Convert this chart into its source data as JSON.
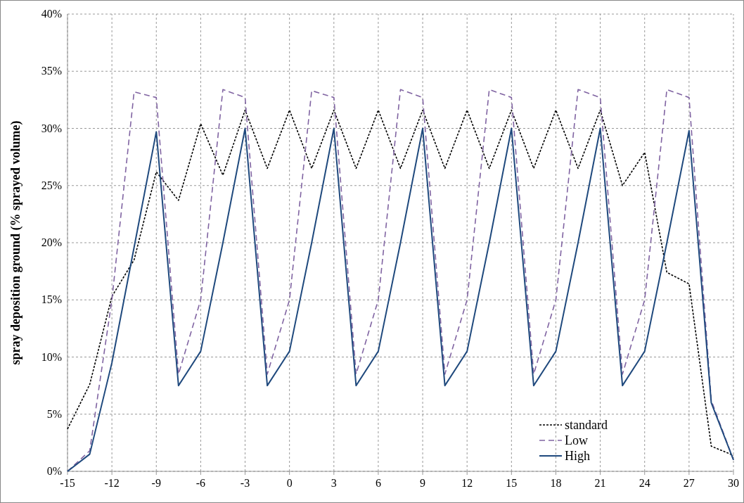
{
  "chart_data": {
    "type": "line",
    "ylabel": "spray deposition ground (% sprayed volume)",
    "x": [
      -15,
      -13.5,
      -12,
      -10.5,
      -9,
      -7.5,
      -6,
      -4.5,
      -3,
      -1.5,
      0,
      1.5,
      3,
      4.5,
      6,
      7.5,
      9,
      10.5,
      12,
      13.5,
      15,
      16.5,
      18,
      19.5,
      21,
      22.5,
      24,
      25.5,
      27,
      28.5,
      30
    ],
    "series": [
      {
        "name": "standard",
        "color": "#000000",
        "line_style": "dotted",
        "values": [
          3.7,
          7.6,
          15.3,
          18.5,
          26.2,
          23.7,
          30.4,
          25.9,
          31.6,
          26.5,
          31.6,
          26.5,
          31.6,
          26.5,
          31.6,
          26.5,
          31.6,
          26.5,
          31.6,
          26.5,
          31.6,
          26.5,
          31.6,
          26.5,
          31.6,
          25.0,
          27.9,
          17.4,
          16.4,
          2.2,
          1.4
        ]
      },
      {
        "name": "Low",
        "color": "#8064a2",
        "line_style": "dashed",
        "values": [
          0,
          1.8,
          15.0,
          33.2,
          32.7,
          8.5,
          15.0,
          33.4,
          32.7,
          8.5,
          15.0,
          33.3,
          32.7,
          8.5,
          15.0,
          33.4,
          32.7,
          8.5,
          15.0,
          33.4,
          32.7,
          8.5,
          15.0,
          33.4,
          32.7,
          8.5,
          15.0,
          33.4,
          32.7,
          6.2,
          1.0
        ]
      },
      {
        "name": "High",
        "color": "#1f497d",
        "line_style": "solid",
        "values": [
          0,
          1.5,
          9.5,
          19.6,
          29.7,
          7.5,
          10.5,
          20.0,
          30.0,
          7.5,
          10.5,
          20.0,
          30.0,
          7.5,
          10.5,
          20.0,
          30.0,
          7.5,
          10.5,
          20.0,
          30.0,
          7.5,
          10.5,
          20.0,
          30.0,
          7.5,
          10.5,
          20.0,
          29.8,
          6.0,
          1.0
        ]
      }
    ],
    "xlim": [
      -15,
      30
    ],
    "xticks": [
      -15,
      -12,
      -9,
      -6,
      -3,
      0,
      3,
      6,
      9,
      12,
      15,
      18,
      21,
      24,
      27,
      30
    ],
    "ylim": [
      0,
      40
    ],
    "yticks": [
      {
        "value": 0,
        "label": "0%"
      },
      {
        "value": 5,
        "label": "5%"
      },
      {
        "value": 10,
        "label": "10%"
      },
      {
        "value": 15,
        "label": "15%"
      },
      {
        "value": 20,
        "label": "20%"
      },
      {
        "value": 25,
        "label": "25%"
      },
      {
        "value": 30,
        "label": "30%"
      },
      {
        "value": 35,
        "label": "35%"
      },
      {
        "value": 40,
        "label": "40%"
      }
    ],
    "grid": true,
    "legend": "bottom right"
  }
}
